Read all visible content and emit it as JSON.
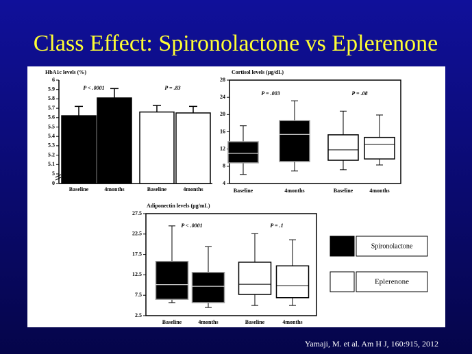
{
  "title": "Class Effect: Spironolactone vs Eplerenone",
  "citation": "Yamaji,  M. et al. Am H J, 160:915, 2012",
  "legend": [
    {
      "name": "Spironolactone",
      "color": "#000000"
    },
    {
      "name": "Eplerenone",
      "color": "#ffffff"
    }
  ],
  "chart_data": [
    {
      "type": "bar",
      "title": "HbA1c levels (%)",
      "categories": [
        "Baseline",
        "4months",
        "Baseline",
        "4months"
      ],
      "values": [
        5.62,
        5.81,
        5.66,
        5.65
      ],
      "errors": [
        0.1,
        0.1,
        0.07,
        0.07
      ],
      "colors": [
        "#000000",
        "#000000",
        "#ffffff",
        "#ffffff"
      ],
      "ylim": [
        5,
        6
      ],
      "yticks": [
        0,
        5,
        5.1,
        5.2,
        5.3,
        5.4,
        5.5,
        5.6,
        5.7,
        5.8,
        5.9,
        6
      ],
      "axis_break": true,
      "annotations": [
        "P < .0001",
        "P = .83"
      ]
    },
    {
      "type": "box",
      "title": "Cortisol levels (μg/dL)",
      "categories": [
        "Baseline",
        "4months",
        "Baseline",
        "4months"
      ],
      "boxes": [
        {
          "min": 6.1,
          "q1": 8.8,
          "median": 11.0,
          "q3": 13.7,
          "max": 17.4
        },
        {
          "min": 6.9,
          "q1": 9.1,
          "median": 15.4,
          "q3": 18.6,
          "max": 23.2
        },
        {
          "min": 7.2,
          "q1": 9.4,
          "median": 11.8,
          "q3": 15.3,
          "max": 20.8
        },
        {
          "min": 8.3,
          "q1": 9.7,
          "median": 13.1,
          "q3": 14.7,
          "max": 19.9
        }
      ],
      "colors": [
        "#000000",
        "#000000",
        "#ffffff",
        "#ffffff"
      ],
      "ylim": [
        4,
        28
      ],
      "yticks": [
        4,
        8,
        12,
        16,
        20,
        24,
        28
      ],
      "annotations": [
        "P = .003",
        "P = .08"
      ]
    },
    {
      "type": "box",
      "title": "Adiponectin levels (μg/mL)",
      "categories": [
        "Baseline",
        "4months",
        "Baseline",
        "4months"
      ],
      "boxes": [
        {
          "min": 5.7,
          "q1": 6.5,
          "median": 10.1,
          "q3": 15.8,
          "max": 24.5
        },
        {
          "min": 4.5,
          "q1": 5.7,
          "median": 9.7,
          "q3": 13.1,
          "max": 19.4
        },
        {
          "min": 5.0,
          "q1": 7.7,
          "median": 10.2,
          "q3": 15.6,
          "max": 22.6
        },
        {
          "min": 5.0,
          "q1": 6.9,
          "median": 9.8,
          "q3": 14.7,
          "max": 21.1
        }
      ],
      "colors": [
        "#000000",
        "#000000",
        "#ffffff",
        "#ffffff"
      ],
      "ylim": [
        2.5,
        27.5
      ],
      "yticks": [
        2.5,
        7.5,
        12.5,
        17.5,
        22.5,
        27.5
      ],
      "annotations": [
        "P < .0001",
        "P = .1"
      ]
    }
  ]
}
